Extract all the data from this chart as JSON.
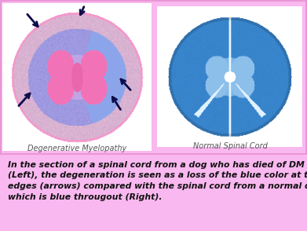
{
  "background_color": "#f9b8ef",
  "top_bg": "#ffffff",
  "bottom_bg": "#f9b8ef",
  "caption_text": "In the section of a spinal cord from a dog who has died of DM\n(Left), the degeneration is seen as a loss of the blue color at the\nedges (arrows) compared with the spinal cord from a normal dog\nwhich is blue througout (Right).",
  "label_left": "Degenerative Myelopathy",
  "label_right": "Normal Spinal Cord",
  "label_color": "#555555",
  "arrow_color": "#0d0d4a",
  "caption_fontsize": 7.8,
  "label_fontsize": 7.0,
  "border_color": "#e890d0"
}
